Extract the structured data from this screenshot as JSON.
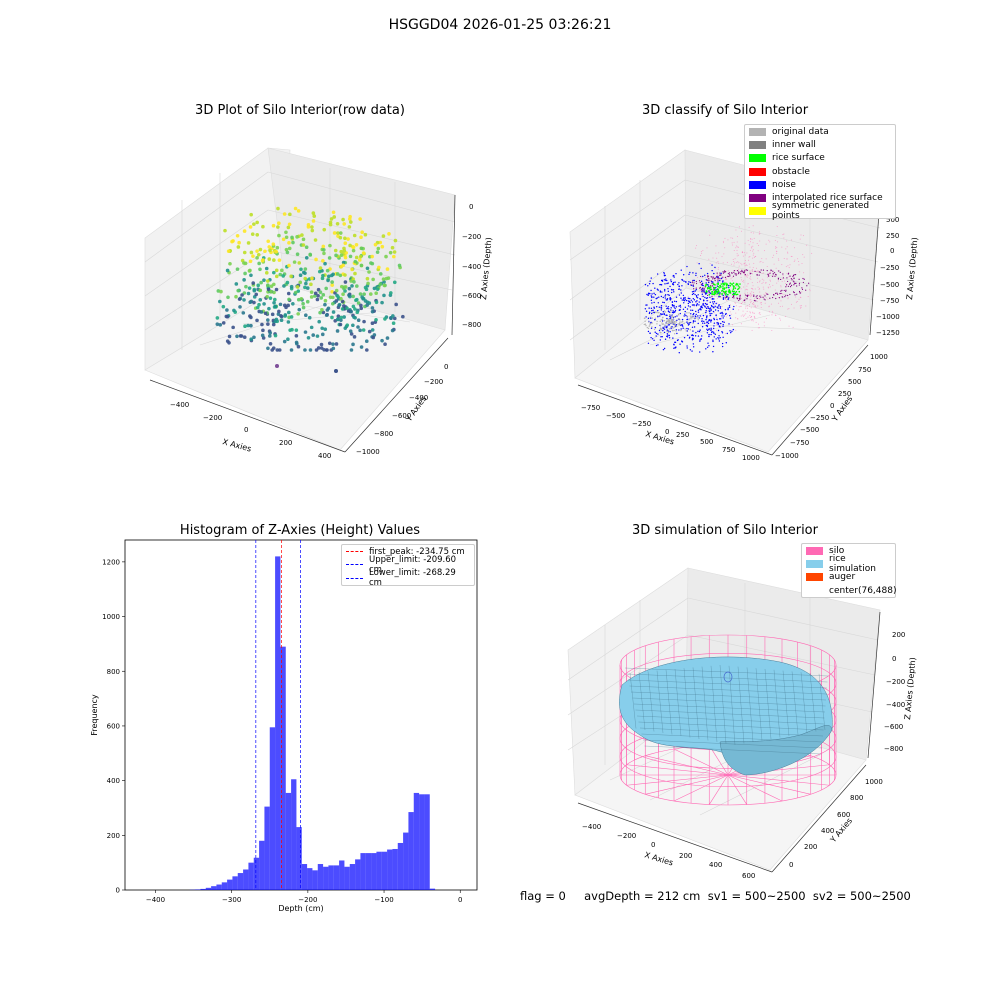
{
  "suptitle": "HSGGD04 2026-01-25 03:26:21",
  "panels": {
    "raw": {
      "title": "3D Plot of Silo Interior(row data)",
      "xlabel": "X Axies",
      "ylabel": "Y Axies",
      "zlabel": "Z Axies (Depth)",
      "xticks": [
        "−400",
        "−200",
        "0",
        "200",
        "400"
      ],
      "yticks": [
        "0",
        "−200",
        "−400",
        "−600",
        "−800",
        "−1000"
      ],
      "zticks": [
        "0",
        "−200",
        "−400",
        "−600",
        "−800"
      ]
    },
    "classify": {
      "title": "3D classify of Silo Interior",
      "xlabel": "X Axies",
      "ylabel": "Y Axies",
      "zlabel": "Z Axies (Depth)",
      "xticks": [
        "−750",
        "−500",
        "−250",
        "0",
        "250",
        "500",
        "750",
        "1000"
      ],
      "yticks": [
        "1000",
        "750",
        "500",
        "250",
        "0",
        "−250",
        "−500",
        "−750",
        "−1000"
      ],
      "zticks": [
        "500",
        "250",
        "0",
        "−250",
        "−500",
        "−750",
        "−1000",
        "−1250"
      ],
      "legend": [
        {
          "label": "original data",
          "color": "#b3b3b3"
        },
        {
          "label": "inner wall",
          "color": "#808080"
        },
        {
          "label": "rice surface",
          "color": "#00ff00"
        },
        {
          "label": "obstacle",
          "color": "#ff0000"
        },
        {
          "label": "noise",
          "color": "#0000ff"
        },
        {
          "label": "interpolated rice surface",
          "color": "#800080"
        },
        {
          "label": "symmetric generated points",
          "color": "#ffff00"
        }
      ]
    },
    "simulation": {
      "title": "3D simulation of Silo Interior",
      "xlabel": "X Axies",
      "ylabel": "Y Axies",
      "zlabel": "Z Axies (Depth)",
      "xticks": [
        "−400",
        "−200",
        "0",
        "200",
        "400",
        "600"
      ],
      "yticks": [
        "0",
        "200",
        "400",
        "600",
        "800",
        "1000"
      ],
      "zticks": [
        "200",
        "0",
        "−200",
        "−400",
        "−600",
        "−800"
      ],
      "legend": [
        {
          "label": "silo",
          "color": "#ff69b4"
        },
        {
          "label": "rice simulation",
          "color": "#87ceeb"
        },
        {
          "label": "auger",
          "color": "#ff4500"
        },
        {
          "label": "center(76,488)",
          "color": ""
        }
      ]
    }
  },
  "chart_data": {
    "type": "bar",
    "title": "Histogram of Z-Axies (Height) Values",
    "xlabel": "Depth (cm)",
    "ylabel": "Frequency",
    "xlim": [
      -440,
      22
    ],
    "ylim": [
      0,
      1280
    ],
    "xticks": [
      -400,
      -300,
      -200,
      -100,
      0
    ],
    "yticks": [
      0,
      200,
      400,
      600,
      800,
      1000,
      1200
    ],
    "bin_width": 7,
    "bin_starts": [
      -355,
      -348,
      -341,
      -334,
      -327,
      -320,
      -313,
      -306,
      -299,
      -292,
      -285,
      -278,
      -271,
      -264,
      -257,
      -250,
      -243,
      -236,
      -229,
      -222,
      -215,
      -208,
      -201,
      -194,
      -187,
      -180,
      -173,
      -166,
      -159,
      -152,
      -145,
      -138,
      -131,
      -124,
      -117,
      -110,
      -103,
      -96,
      -89,
      -82,
      -75,
      -68,
      -61,
      -54,
      -47,
      -40,
      -33,
      -26,
      -19,
      -12,
      -5
    ],
    "values": [
      1,
      2,
      4,
      8,
      14,
      20,
      28,
      38,
      50,
      62,
      75,
      100,
      118,
      180,
      305,
      595,
      1220,
      890,
      355,
      405,
      230,
      95,
      80,
      72,
      95,
      85,
      90,
      90,
      108,
      85,
      95,
      112,
      135,
      135,
      135,
      140,
      140,
      148,
      150,
      172,
      210,
      285,
      355,
      350,
      350,
      5,
      0,
      0,
      0,
      0,
      0
    ],
    "lines": [
      {
        "label": "first_peak: -234.75 cm",
        "x": -234.75,
        "color": "#ff0000"
      },
      {
        "label": "Upper_limit: -209.60 cm",
        "x": -209.6,
        "color": "#0000ff"
      },
      {
        "label": "Lower_limit: -268.29 cm",
        "x": -268.29,
        "color": "#0000ff"
      }
    ],
    "legend_position": "top-right",
    "bar_color": "#0000ff"
  },
  "footer": "flag = 0     avgDepth = 212 cm  sv1 = 500~2500  sv2 = 500~2500"
}
